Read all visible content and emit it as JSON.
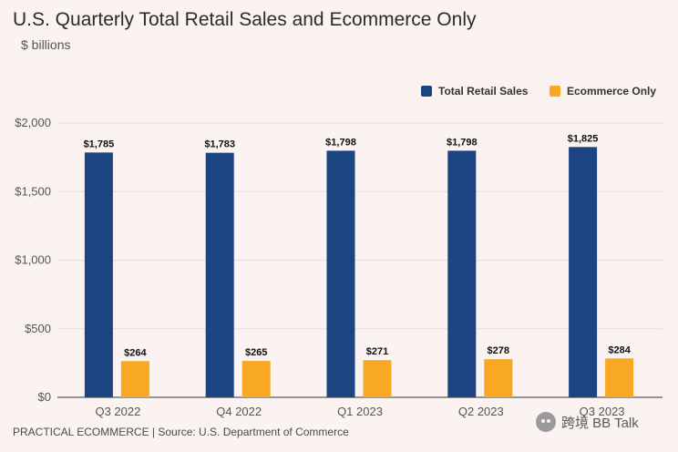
{
  "title": "U.S. Quarterly Total Retail Sales and Ecommerce Only",
  "subtitle": "$ billions",
  "footer": "PRACTICAL ECOMMERCE | Source: U.S. Department of Commerce",
  "watermark": "跨境 BB Talk",
  "chart_data": {
    "type": "bar",
    "categories": [
      "Q3 2022",
      "Q4 2022",
      "Q1 2023",
      "Q2 2023",
      "Q3 2023"
    ],
    "series": [
      {
        "name": "Total Retail Sales",
        "color": "#1c4480",
        "values": [
          1785,
          1783,
          1798,
          1798,
          1825
        ],
        "labels": [
          "$1,785",
          "$1,783",
          "$1,798",
          "$1,798",
          "$1,825"
        ]
      },
      {
        "name": "Ecommerce Only",
        "color": "#f8a823",
        "values": [
          264,
          265,
          271,
          278,
          284
        ],
        "labels": [
          "$264",
          "$265",
          "$271",
          "$278",
          "$284"
        ]
      }
    ],
    "ylim": [
      0,
      2000
    ],
    "yticks": [
      0,
      500,
      1000,
      1500,
      2000
    ],
    "ytick_labels": [
      "$0",
      "$500",
      "$1,000",
      "$1,500",
      "$2,000"
    ],
    "grid": true,
    "legend_position": "top-right"
  }
}
